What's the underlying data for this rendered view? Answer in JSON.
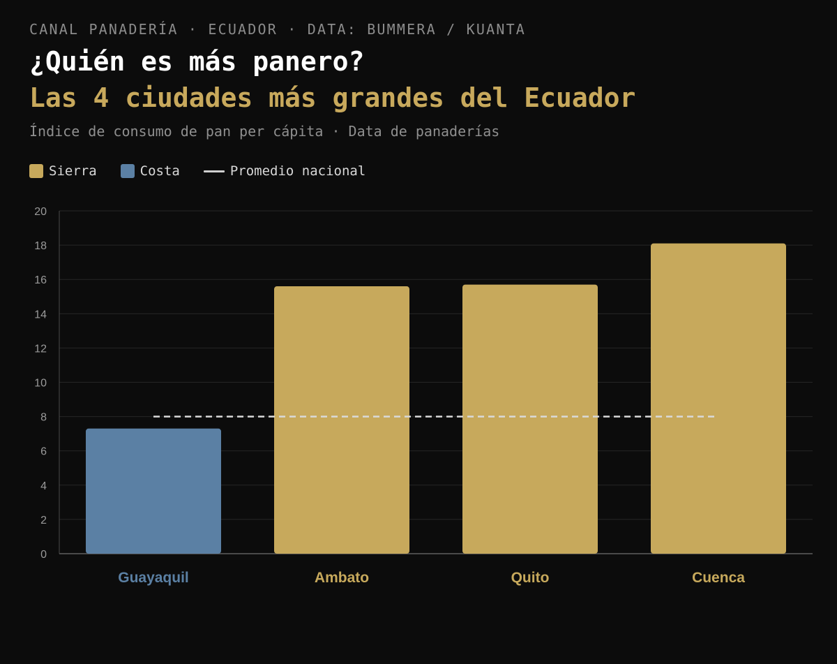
{
  "header": {
    "kicker": "CANAL PANADERÍA · ECUADOR · DATA: BUMMERA / KUANTA",
    "title": "¿Quién es más panero?",
    "subtitle": "Las 4 ciudades más grandes del Ecuador",
    "description": "Índice de consumo de pan per cápita · Data de panaderías"
  },
  "legend": {
    "sierra": "Sierra",
    "costa": "Costa",
    "average": "Promedio nacional"
  },
  "colors": {
    "sierra": "#c7a95c",
    "costa": "#5b80a4",
    "average": "#d9d9d9",
    "grid": "#262626",
    "axis": "#4a4a4a"
  },
  "chart_data": {
    "type": "bar",
    "categories": [
      "Guayaquil",
      "Ambato",
      "Quito",
      "Cuenca"
    ],
    "regions": [
      "costa",
      "sierra",
      "sierra",
      "sierra"
    ],
    "values": [
      7.3,
      15.6,
      15.7,
      18.1
    ],
    "national_average": 8,
    "ylim": [
      0,
      20
    ],
    "yticks": [
      0,
      2,
      4,
      6,
      8,
      10,
      12,
      14,
      16,
      18,
      20
    ],
    "grid": true,
    "legend_position": "top-left"
  }
}
